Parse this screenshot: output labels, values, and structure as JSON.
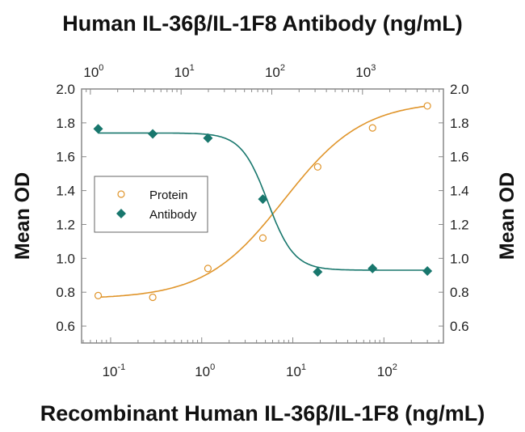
{
  "chart_data": {
    "type": "scatter",
    "title_top": "Human IL-36β/IL-1F8 Antibody (ng/mL)",
    "xlabel": "Recombinant Human IL-36β/IL-1F8 (ng/mL)",
    "ylabel_left": "Mean OD",
    "ylabel_right": "Mean OD",
    "x_scale": "log",
    "xlim": [
      0.048,
      450
    ],
    "x_ticks": [
      {
        "base": "10",
        "exp": "-1",
        "value": 0.1
      },
      {
        "base": "10",
        "exp": "0",
        "value": 1
      },
      {
        "base": "10",
        "exp": "1",
        "value": 10
      },
      {
        "base": "10",
        "exp": "2",
        "value": 100
      }
    ],
    "top_x_scale": "log",
    "top_xlim": [
      0.8,
      7800
    ],
    "top_x_ticks": [
      {
        "base": "10",
        "exp": "0",
        "value": 1
      },
      {
        "base": "10",
        "exp": "1",
        "value": 10
      },
      {
        "base": "10",
        "exp": "2",
        "value": 100
      },
      {
        "base": "10",
        "exp": "3",
        "value": 1000
      }
    ],
    "ylim": [
      0.5,
      2.0
    ],
    "y_ticks": [
      "0.6",
      "0.8",
      "1.0",
      "1.2",
      "1.4",
      "1.6",
      "1.8",
      "2.0"
    ],
    "grid": false,
    "legend_position": "center-left",
    "series": [
      {
        "name": "Protein",
        "marker": "open-circle",
        "color": "#E0952B",
        "x": [
          0.073,
          0.29,
          1.17,
          4.69,
          18.75,
          75,
          300
        ],
        "y": [
          0.78,
          0.77,
          0.94,
          1.12,
          1.54,
          1.77,
          1.9
        ],
        "fit": {
          "model": "4PL",
          "bottom": 0.76,
          "top": 1.93,
          "ec50": 8,
          "hill": 1
        }
      },
      {
        "name": "Antibody",
        "marker": "filled-diamond",
        "color": "#18776D",
        "x": [
          0.073,
          0.29,
          1.17,
          4.69,
          18.75,
          75,
          300
        ],
        "y": [
          1.765,
          1.735,
          1.71,
          1.35,
          0.92,
          0.94,
          0.925
        ],
        "fit": {
          "model": "4PL",
          "bottom": 0.93,
          "top": 1.74,
          "ec50": 5.3,
          "hill": 3
        }
      }
    ]
  }
}
